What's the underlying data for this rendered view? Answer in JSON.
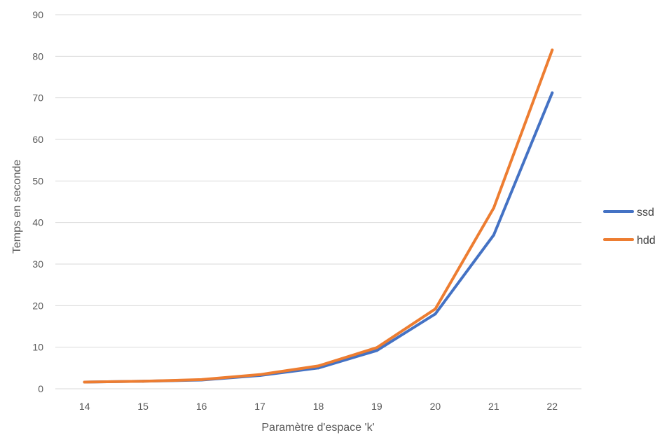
{
  "chart_data": {
    "type": "line",
    "title": "",
    "xlabel": "Paramètre d'espace 'k'",
    "ylabel": "Temps en seconde",
    "categories": [
      "14",
      "15",
      "16",
      "17",
      "18",
      "19",
      "20",
      "21",
      "22"
    ],
    "yticks": [
      "0",
      "10",
      "20",
      "30",
      "40",
      "50",
      "60",
      "70",
      "80",
      "90"
    ],
    "ylim": [
      0,
      90
    ],
    "grid": true,
    "legend_position": "right",
    "series": [
      {
        "name": "ssd",
        "color": "#4472c4",
        "values": [
          1.6,
          1.8,
          2.1,
          3.2,
          5.0,
          9.2,
          18.0,
          37.0,
          71.2
        ]
      },
      {
        "name": "hdd",
        "color": "#ed7d31",
        "values": [
          1.6,
          1.8,
          2.2,
          3.4,
          5.5,
          9.9,
          19.2,
          43.5,
          81.5
        ]
      }
    ]
  }
}
